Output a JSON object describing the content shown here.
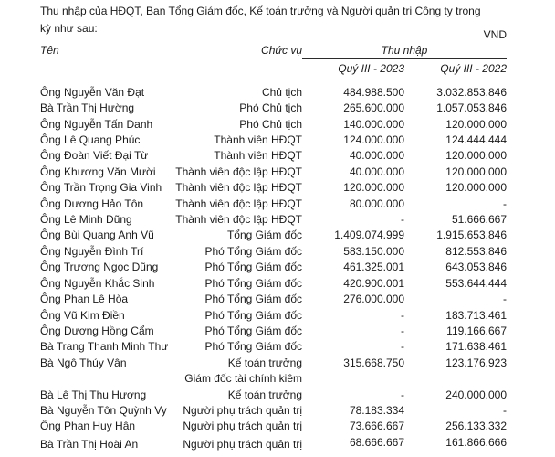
{
  "intro": {
    "text": "Thu nhập của HĐQT, Ban Tổng Giám đốc, Kế toán trưởng và Người quản trị Công ty trong\nkỳ như sau:",
    "currency": "VND"
  },
  "table": {
    "headers": {
      "name": "Tên",
      "position": "Chức vụ",
      "income_group": "Thu nhập",
      "period_current": "Quý III - 2023",
      "period_prior": "Quý III - 2022"
    },
    "empty_value": "-",
    "rows": [
      {
        "name": "Ông Nguyễn Văn Đạt",
        "position": "Chủ tịch",
        "q3_2023": "484.988.500",
        "q3_2022": "3.032.853.846"
      },
      {
        "name": "Bà Trần Thị Hường",
        "position": "Phó Chủ tịch",
        "q3_2023": "265.600.000",
        "q3_2022": "1.057.053.846"
      },
      {
        "name": "Ông Nguyễn Tấn Danh",
        "position": "Phó Chủ tịch",
        "q3_2023": "140.000.000",
        "q3_2022": "120.000.000"
      },
      {
        "name": "Ông Lê Quang Phúc",
        "position": "Thành viên HĐQT",
        "q3_2023": "124.000.000",
        "q3_2022": "124.444.444"
      },
      {
        "name": "Ông Đoàn Viết Đại Từ",
        "position": "Thành viên HĐQT",
        "q3_2023": "40.000.000",
        "q3_2022": "120.000.000"
      },
      {
        "name": "Ông Khương Văn Mười",
        "position": "Thành viên độc lập HĐQT",
        "q3_2023": "40.000.000",
        "q3_2022": "120.000.000"
      },
      {
        "name": "Ông Trần Trọng Gia Vinh",
        "position": "Thành viên độc lập HĐQT",
        "q3_2023": "120.000.000",
        "q3_2022": "120.000.000"
      },
      {
        "name": "Ông Dương Hảo Tôn",
        "position": "Thành viên độc lập HĐQT",
        "q3_2023": "80.000.000",
        "q3_2022": "-"
      },
      {
        "name": "Ông Lê Minh Dũng",
        "position": "Thành viên độc lập HĐQT",
        "q3_2023": "-",
        "q3_2022": "51.666.667"
      },
      {
        "name": "Ông Bùi Quang Anh Vũ",
        "position": "Tổng Giám đốc",
        "q3_2023": "1.409.074.999",
        "q3_2022": "1.915.653.846"
      },
      {
        "name": "Ông Nguyễn Đình Trí",
        "position": "Phó Tổng Giám đốc",
        "q3_2023": "583.150.000",
        "q3_2022": "812.553.846"
      },
      {
        "name": "Ông Trương Ngọc Dũng",
        "position": "Phó Tổng Giám đốc",
        "q3_2023": "461.325.001",
        "q3_2022": "643.053.846"
      },
      {
        "name": "Ông Nguyễn Khắc Sinh",
        "position": "Phó Tổng Giám đốc",
        "q3_2023": "420.900.001",
        "q3_2022": "553.644.444"
      },
      {
        "name": "Ông Phan Lê Hòa",
        "position": "Phó Tổng Giám đốc",
        "q3_2023": "276.000.000",
        "q3_2022": "-"
      },
      {
        "name": "Ông Vũ Kim Điền",
        "position": "Phó Tổng Giám đốc",
        "q3_2023": "-",
        "q3_2022": "183.713.461"
      },
      {
        "name": "Ông Dương Hồng Cẩm",
        "position": "Phó Tổng Giám đốc",
        "q3_2023": "-",
        "q3_2022": "119.166.667"
      },
      {
        "name": "Bà Trang Thanh Minh Thư",
        "position": "Phó Tổng Giám đốc",
        "q3_2023": "-",
        "q3_2022": "171.638.461"
      },
      {
        "name": "Bà Ngô Thúy Vân",
        "position": "Kế toán trưởng",
        "q3_2023": "315.668.750",
        "q3_2022": "123.176.923"
      },
      {
        "name": "Bà Lê Thị Thu Hương",
        "position": "Giám đốc tài chính kiêm\nKế toán trưởng",
        "q3_2023": "-",
        "q3_2022": "240.000.000"
      },
      {
        "name": "Bà Nguyễn Tôn Quỳnh Vy",
        "position": "Người phụ trách quản trị",
        "q3_2023": "78.183.334",
        "q3_2022": "-"
      },
      {
        "name": "Ông Phan Huy Hân",
        "position": "Người phụ trách quản trị",
        "q3_2023": "73.666.667",
        "q3_2022": "256.133.332"
      },
      {
        "name": "Bà Trần Thị Hoài An",
        "position": "Người phụ trách quản trị",
        "q3_2023": "68.666.667",
        "q3_2022": "161.866.666"
      }
    ]
  }
}
